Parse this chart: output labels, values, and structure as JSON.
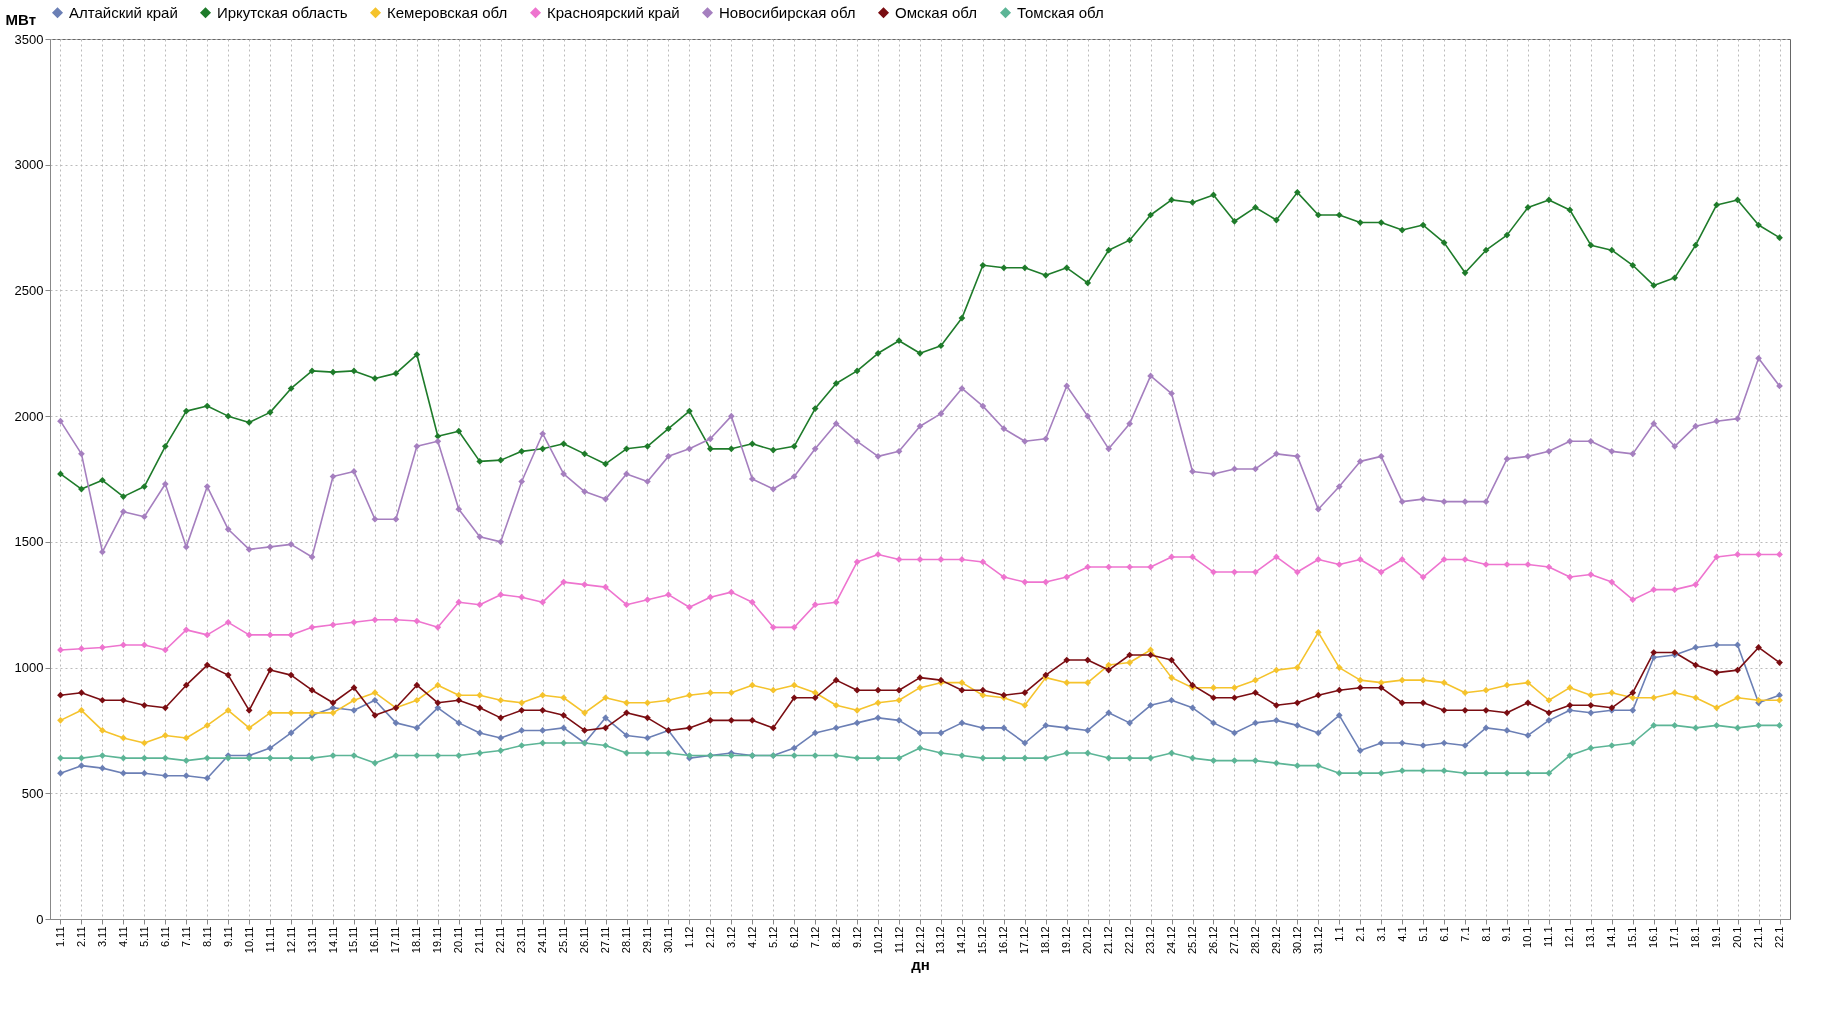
{
  "chart_data": {
    "type": "line",
    "xlabel": "дн",
    "ylabel": "МВт",
    "categories": [
      "1.11",
      "2.11",
      "3.11",
      "4.11",
      "5.11",
      "6.11",
      "7.11",
      "8.11",
      "9.11",
      "10.11",
      "11.11",
      "12.11",
      "13.11",
      "14.11",
      "15.11",
      "16.11",
      "17.11",
      "18.11",
      "19.11",
      "20.11",
      "21.11",
      "22.11",
      "23.11",
      "24.11",
      "25.11",
      "26.11",
      "27.11",
      "28.11",
      "29.11",
      "30.11",
      "1.12",
      "2.12",
      "3.12",
      "4.12",
      "5.12",
      "6.12",
      "7.12",
      "8.12",
      "9.12",
      "10.12",
      "11.12",
      "12.12",
      "13.12",
      "14.12",
      "15.12",
      "16.12",
      "17.12",
      "18.12",
      "19.12",
      "20.12",
      "21.12",
      "22.12",
      "23.12",
      "24.12",
      "25.12",
      "26.12",
      "27.12",
      "28.12",
      "29.12",
      "30.12",
      "31.12",
      "1.1",
      "2.1",
      "3.1",
      "4.1",
      "5.1",
      "6.1",
      "7.1",
      "8.1",
      "9.1",
      "10.1",
      "11.1",
      "12.1",
      "13.1",
      "14.1",
      "15.1",
      "16.1",
      "17.1",
      "18.1",
      "19.1",
      "20.1",
      "21.1",
      "22.1"
    ],
    "ylim": [
      0,
      3500
    ],
    "yticks": [
      0,
      500,
      1000,
      1500,
      2000,
      2500,
      3000,
      3500
    ],
    "grid": true,
    "legend": "top",
    "marker": "diamond",
    "line_style": "solid",
    "series": [
      {
        "name": "Алтайский край",
        "color": "#6b7fb5",
        "values": [
          580,
          610,
          600,
          580,
          580,
          570,
          570,
          560,
          650,
          650,
          680,
          740,
          810,
          840,
          830,
          870,
          780,
          760,
          840,
          780,
          740,
          720,
          750,
          750,
          760,
          700,
          800,
          730,
          720,
          750,
          640,
          650,
          660,
          650,
          650,
          680,
          740,
          760,
          780,
          800,
          790,
          740,
          740,
          780,
          760,
          760,
          700,
          770,
          760,
          750,
          820,
          780,
          850,
          870,
          840,
          780,
          740,
          780,
          790,
          770,
          740,
          810,
          670,
          700,
          700,
          690,
          700,
          690,
          760,
          750,
          730,
          790,
          830,
          820,
          830,
          830,
          1040,
          1050,
          1080,
          1090,
          1090,
          860,
          890
        ]
      },
      {
        "name": "Иркутская область",
        "color": "#1e7b2a",
        "values": [
          1770,
          1710,
          1745,
          1680,
          1720,
          1880,
          2020,
          2040,
          2000,
          1975,
          2015,
          2110,
          2180,
          2175,
          2180,
          2150,
          2170,
          2245,
          1920,
          1940,
          1820,
          1825,
          1860,
          1870,
          1890,
          1850,
          1810,
          1870,
          1880,
          1950,
          2020,
          1870,
          1870,
          1890,
          1865,
          1880,
          2030,
          2130,
          2180,
          2250,
          2300,
          2250,
          2280,
          2390,
          2600,
          2590,
          2590,
          2560,
          2590,
          2530,
          2660,
          2700,
          2800,
          2860,
          2850,
          2880,
          2775,
          2830,
          2780,
          2890,
          2800,
          2800,
          2770,
          2770,
          2740,
          2760,
          2690,
          2570,
          2660,
          2720,
          2830,
          2860,
          2820,
          2680,
          2660,
          2600,
          2520,
          2550,
          2680,
          2840,
          2860,
          2760,
          2710
        ]
      },
      {
        "name": "Кемеровская обл",
        "color": "#f5c32c",
        "values": [
          790,
          830,
          750,
          720,
          700,
          730,
          720,
          770,
          830,
          760,
          820,
          820,
          820,
          820,
          870,
          900,
          840,
          870,
          930,
          890,
          890,
          870,
          860,
          890,
          880,
          820,
          880,
          860,
          860,
          870,
          890,
          900,
          900,
          930,
          910,
          930,
          900,
          850,
          830,
          860,
          870,
          920,
          940,
          940,
          890,
          880,
          850,
          960,
          940,
          940,
          1010,
          1020,
          1070,
          960,
          920,
          920,
          920,
          950,
          990,
          1000,
          1140,
          1000,
          950,
          940,
          950,
          950,
          940,
          900,
          910,
          930,
          940,
          870,
          920,
          890,
          900,
          880,
          880,
          900,
          880,
          840,
          880,
          870,
          870
        ]
      },
      {
        "name": "Красноярский край",
        "color": "#ee74cf",
        "values": [
          1070,
          1075,
          1080,
          1090,
          1090,
          1070,
          1150,
          1130,
          1180,
          1130,
          1130,
          1130,
          1160,
          1170,
          1180,
          1190,
          1190,
          1185,
          1160,
          1260,
          1250,
          1290,
          1280,
          1260,
          1340,
          1330,
          1320,
          1250,
          1270,
          1290,
          1240,
          1280,
          1300,
          1260,
          1160,
          1160,
          1250,
          1260,
          1420,
          1450,
          1430,
          1430,
          1430,
          1430,
          1420,
          1360,
          1340,
          1340,
          1360,
          1400,
          1400,
          1400,
          1400,
          1440,
          1440,
          1380,
          1380,
          1380,
          1440,
          1380,
          1430,
          1410,
          1430,
          1380,
          1430,
          1360,
          1430,
          1430,
          1410,
          1410,
          1410,
          1400,
          1360,
          1370,
          1340,
          1270,
          1310,
          1310,
          1330,
          1440,
          1450,
          1450,
          1450
        ]
      },
      {
        "name": "Новосибирская обл",
        "color": "#a57fbf",
        "values": [
          1980,
          1850,
          1460,
          1620,
          1600,
          1730,
          1480,
          1720,
          1550,
          1470,
          1480,
          1490,
          1440,
          1760,
          1780,
          1590,
          1590,
          1880,
          1900,
          1630,
          1520,
          1500,
          1740,
          1930,
          1770,
          1700,
          1670,
          1770,
          1740,
          1840,
          1870,
          1910,
          2000,
          1750,
          1710,
          1760,
          1870,
          1970,
          1900,
          1840,
          1860,
          1960,
          2010,
          2110,
          2040,
          1950,
          1900,
          1910,
          2120,
          2000,
          1870,
          1970,
          2160,
          2090,
          1780,
          1770,
          1790,
          1790,
          1850,
          1840,
          1630,
          1720,
          1820,
          1840,
          1660,
          1670,
          1660,
          1660,
          1660,
          1830,
          1840,
          1860,
          1900,
          1900,
          1860,
          1850,
          1970,
          1880,
          1960,
          1980,
          1990,
          2230,
          2120
        ]
      },
      {
        "name": "Омская обл",
        "color": "#7a0d12",
        "values": [
          890,
          900,
          870,
          870,
          850,
          840,
          930,
          1010,
          970,
          830,
          990,
          970,
          910,
          860,
          920,
          810,
          840,
          930,
          860,
          870,
          840,
          800,
          830,
          830,
          810,
          750,
          760,
          820,
          800,
          750,
          760,
          790,
          790,
          790,
          760,
          880,
          880,
          950,
          910,
          910,
          910,
          960,
          950,
          910,
          910,
          890,
          900,
          970,
          1030,
          1030,
          990,
          1050,
          1050,
          1030,
          930,
          880,
          880,
          900,
          850,
          860,
          890,
          910,
          920,
          920,
          860,
          860,
          830,
          830,
          830,
          820,
          860,
          820,
          850,
          850,
          840,
          900,
          1060,
          1060,
          1010,
          980,
          990,
          1080,
          1020
        ]
      },
      {
        "name": "Томская обл",
        "color": "#5cb596",
        "values": [
          640,
          640,
          650,
          640,
          640,
          640,
          630,
          640,
          640,
          640,
          640,
          640,
          640,
          650,
          650,
          620,
          650,
          650,
          650,
          650,
          660,
          670,
          690,
          700,
          700,
          700,
          690,
          660,
          660,
          660,
          650,
          650,
          650,
          650,
          650,
          650,
          650,
          650,
          640,
          640,
          640,
          680,
          660,
          650,
          640,
          640,
          640,
          640,
          660,
          660,
          640,
          640,
          640,
          660,
          640,
          630,
          630,
          630,
          620,
          610,
          610,
          580,
          580,
          580,
          590,
          590,
          590,
          580,
          580,
          580,
          580,
          580,
          650,
          680,
          690,
          700,
          770,
          770,
          760,
          770,
          760,
          770,
          770
        ]
      }
    ]
  }
}
